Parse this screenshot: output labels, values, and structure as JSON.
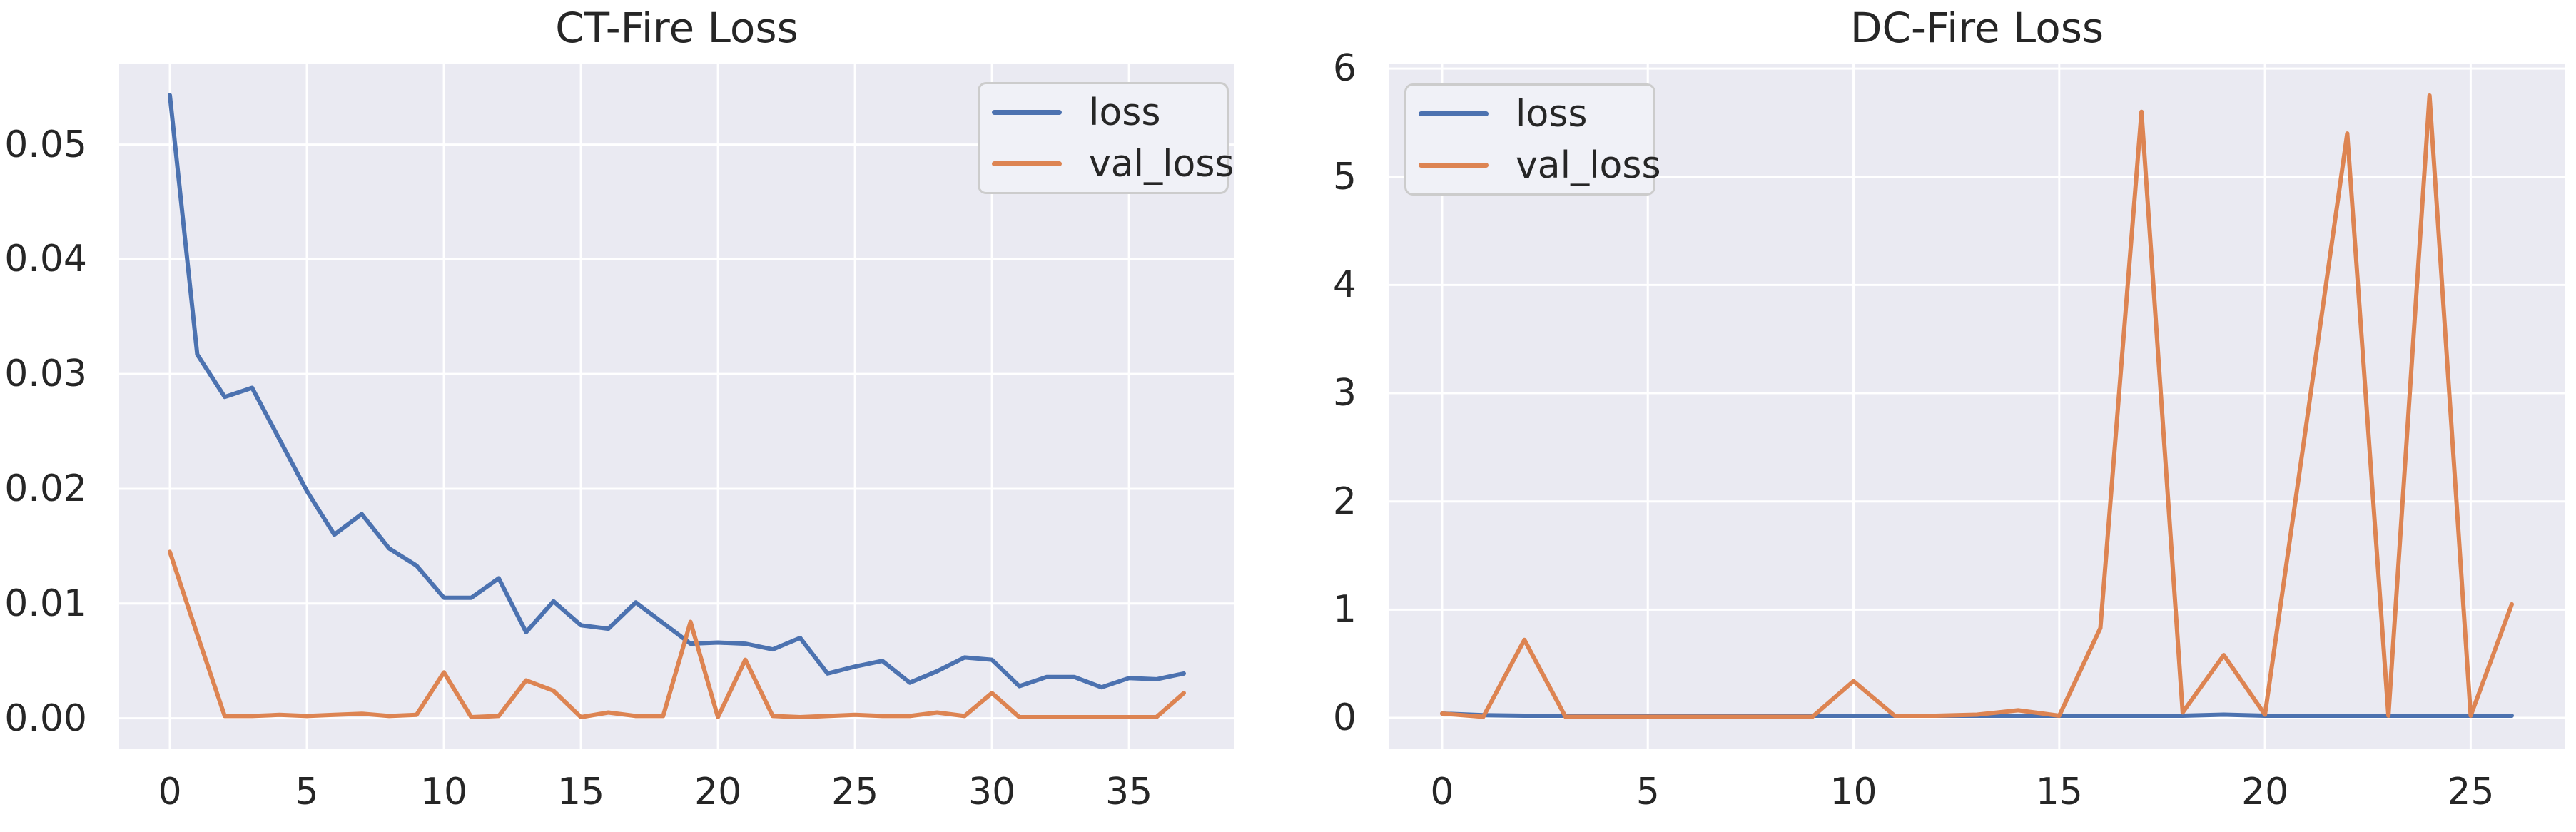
{
  "figure": {
    "background_color": "#ffffff",
    "axes_background_color": "#eaeaf2",
    "grid_color": "#ffffff",
    "text_color": "#262626",
    "legend_background_color": "#f0f1f7",
    "legend_border_color": "#cccccc"
  },
  "chart_data": [
    {
      "type": "line",
      "title": "CT-Fire Loss",
      "xlabel": "",
      "ylabel": "",
      "grid": true,
      "legend_position": "upper right",
      "legend_labels": [
        "loss",
        "val_loss"
      ],
      "xlim": [
        -1.85,
        38.85
      ],
      "ylim": [
        -0.0027,
        0.057
      ],
      "x_ticks": {
        "values": [
          0,
          5,
          10,
          15,
          20,
          25,
          30,
          35
        ],
        "labels": [
          "0",
          "5",
          "10",
          "15",
          "20",
          "25",
          "30",
          "35"
        ]
      },
      "y_ticks": {
        "values": [
          0.0,
          0.01,
          0.02,
          0.03,
          0.04,
          0.05
        ],
        "labels": [
          "0.00",
          "0.01",
          "0.02",
          "0.03",
          "0.04",
          "0.05"
        ]
      },
      "x": [
        0,
        1,
        2,
        3,
        4,
        5,
        6,
        7,
        8,
        9,
        10,
        11,
        12,
        13,
        14,
        15,
        16,
        17,
        18,
        19,
        20,
        21,
        22,
        23,
        24,
        25,
        26,
        27,
        28,
        29,
        30,
        31,
        32,
        33,
        34,
        35,
        36,
        37
      ],
      "series": [
        {
          "name": "loss",
          "color": "#4c72b0",
          "values": [
            0.0543,
            0.0317,
            0.028,
            0.0288,
            0.0243,
            0.0198,
            0.016,
            0.0178,
            0.0148,
            0.0133,
            0.0105,
            0.0105,
            0.0122,
            0.0075,
            0.0102,
            0.0081,
            0.0078,
            0.0101,
            0.0083,
            0.0065,
            0.0066,
            0.0065,
            0.006,
            0.007,
            0.0039,
            0.0045,
            0.005,
            0.0031,
            0.0041,
            0.0053,
            0.0051,
            0.0028,
            0.0036,
            0.0036,
            0.0027,
            0.0035,
            0.0034,
            0.0039
          ]
        },
        {
          "name": "val_loss",
          "color": "#dd8452",
          "values": [
            0.0145,
            0.0073,
            0.0002,
            0.0002,
            0.0003,
            0.0002,
            0.0003,
            0.0004,
            0.0002,
            0.0003,
            0.004,
            0.0001,
            0.0002,
            0.0033,
            0.0024,
            0.0001,
            0.0005,
            0.0002,
            0.0002,
            0.0084,
            0.0001,
            0.0051,
            0.0002,
            0.0001,
            0.0002,
            0.0003,
            0.0002,
            0.0002,
            0.0005,
            0.0002,
            0.0022,
            0.0001,
            0.0001,
            0.0001,
            0.0001,
            0.0001,
            0.0001,
            0.0022
          ]
        }
      ]
    },
    {
      "type": "line",
      "title": "DC-Fire Loss",
      "xlabel": "",
      "ylabel": "",
      "grid": true,
      "legend_position": "upper left",
      "legend_labels": [
        "loss",
        "val_loss"
      ],
      "xlim": [
        -1.3,
        27.3
      ],
      "ylim": [
        -0.29,
        6.04
      ],
      "x_ticks": {
        "values": [
          0,
          5,
          10,
          15,
          20,
          25
        ],
        "labels": [
          "0",
          "5",
          "10",
          "15",
          "20",
          "25"
        ]
      },
      "y_ticks": {
        "values": [
          0,
          1,
          2,
          3,
          4,
          5,
          6
        ],
        "labels": [
          "0",
          "1",
          "2",
          "3",
          "4",
          "5",
          "6"
        ]
      },
      "x": [
        0,
        1,
        2,
        3,
        4,
        5,
        6,
        7,
        8,
        9,
        10,
        11,
        12,
        13,
        14,
        15,
        16,
        17,
        18,
        19,
        20,
        21,
        22,
        23,
        24,
        25,
        26
      ],
      "series": [
        {
          "name": "loss",
          "color": "#4c72b0",
          "values": [
            0.04,
            0.025,
            0.02,
            0.02,
            0.02,
            0.02,
            0.02,
            0.02,
            0.02,
            0.02,
            0.02,
            0.02,
            0.02,
            0.02,
            0.02,
            0.02,
            0.02,
            0.02,
            0.02,
            0.03,
            0.02,
            0.02,
            0.02,
            0.02,
            0.02,
            0.02,
            0.02
          ]
        },
        {
          "name": "val_loss",
          "color": "#dd8452",
          "values": [
            0.04,
            0.01,
            0.72,
            0.01,
            0.01,
            0.01,
            0.01,
            0.01,
            0.01,
            0.01,
            0.34,
            0.02,
            0.02,
            0.03,
            0.07,
            0.02,
            0.83,
            5.6,
            0.05,
            0.58,
            0.03,
            2.7,
            5.4,
            0.02,
            5.75,
            0.02,
            1.05
          ]
        }
      ]
    }
  ]
}
